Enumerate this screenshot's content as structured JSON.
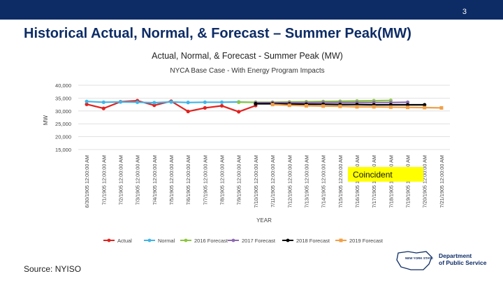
{
  "slide": {
    "page_number": "3",
    "title": "Historical Actual, Normal, & Forecast – Summer Peak(MW)",
    "source": "Source: NYISO",
    "logo_line1": "Department",
    "logo_line2": "of Public Service",
    "logo_state": "NEW YORK STATE"
  },
  "chart_data": {
    "type": "line",
    "title": "Actual, Normal, & Forecast - Summer Peak (MW)",
    "subtitle": "NYCA Base Case - With Energy Program Impacts",
    "xlabel": "YEAR",
    "ylabel": "MW",
    "ylim": [
      15000,
      40000
    ],
    "yticks": [
      "15,000",
      "20,000",
      "25,000",
      "30,000",
      "35,000",
      "40,000"
    ],
    "ytick_values": [
      15000,
      20000,
      25000,
      30000,
      35000,
      40000
    ],
    "grid": true,
    "legend_position": "bottom",
    "annotation": "Coincident",
    "annotation_color": "#ffff00",
    "categories": [
      "6/30/1905 12:00:00 AM",
      "7/1/1905 12:00:00 AM",
      "7/2/1905 12:00:00 AM",
      "7/3/1905 12:00:00 AM",
      "7/4/1905 12:00:00 AM",
      "7/5/1905 12:00:00 AM",
      "7/6/1905 12:00:00 AM",
      "7/7/1905 12:00:00 AM",
      "7/8/1905 12:00:00 AM",
      "7/9/1905 12:00:00 AM",
      "7/10/1905 12:00:00 AM",
      "7/11/1905 12:00:00 AM",
      "7/12/1905 12:00:00 AM",
      "7/13/1905 12:00:00 AM",
      "7/14/1905 12:00:00 AM",
      "7/15/1905 12:00:00 AM",
      "7/16/1905 12:00:00 AM",
      "7/17/1905 12:00:00 AM",
      "7/18/1905 12:00:00 AM",
      "7/19/1905 12:00:00 AM",
      "7/20/1905 12:00:00 AM",
      "7/21/1905 12:00:00 AM"
    ],
    "series": [
      {
        "name": "Actual",
        "color": "#e0221f",
        "marker": "circle",
        "values": [
          32600,
          31000,
          33600,
          34000,
          32200,
          33800,
          29800,
          31200,
          32000,
          29700,
          32100,
          null,
          null,
          null,
          null,
          null,
          null,
          null,
          null,
          null,
          null,
          null
        ]
      },
      {
        "name": "Normal",
        "color": "#41b4e6",
        "marker": "circle",
        "values": [
          33700,
          33400,
          33500,
          33400,
          33200,
          33500,
          33300,
          33400,
          33400,
          33500,
          33300,
          null,
          null,
          null,
          null,
          null,
          null,
          null,
          null,
          null,
          null,
          null
        ]
      },
      {
        "name": "2016 Forecast",
        "color": "#8cc63f",
        "marker": "circle",
        "values": [
          null,
          null,
          null,
          null,
          null,
          null,
          null,
          null,
          null,
          33400,
          33400,
          33400,
          33500,
          33600,
          33700,
          33800,
          33900,
          34000,
          34100,
          null,
          null,
          null
        ]
      },
      {
        "name": "2017 Forecast",
        "color": "#8c6bb1",
        "marker": "circle",
        "values": [
          null,
          null,
          null,
          null,
          null,
          null,
          null,
          null,
          null,
          null,
          33200,
          33200,
          33200,
          33200,
          33300,
          33300,
          33300,
          33300,
          33300,
          33400,
          null,
          null
        ]
      },
      {
        "name": "2018 Forecast",
        "color": "#000000",
        "marker": "circle",
        "values": [
          null,
          null,
          null,
          null,
          null,
          null,
          null,
          null,
          null,
          null,
          32800,
          32800,
          32700,
          32600,
          32600,
          32500,
          32500,
          32400,
          32400,
          32400,
          32400,
          null
        ]
      },
      {
        "name": "2019 Forecast",
        "color": "#f0a048",
        "marker": "square",
        "values": [
          null,
          null,
          null,
          null,
          null,
          null,
          null,
          null,
          null,
          null,
          null,
          32500,
          32200,
          32000,
          31900,
          31800,
          31600,
          31600,
          31500,
          31400,
          31300,
          31200
        ]
      }
    ]
  }
}
